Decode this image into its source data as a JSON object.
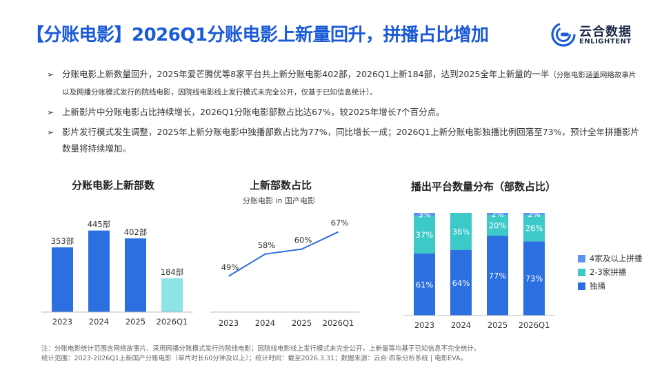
{
  "header": {
    "title": "【分账电影】2026Q1分账电影上新量回升，拼播占比增加",
    "logo_cn": "云合数据",
    "logo_en": "ENLIGHTENT"
  },
  "bullets": [
    {
      "text": "分账电影上新数量回升，2025年爱芒腾优等8家平台共上新分账电影402部，2026Q1上新184部，达到2025全年上新量的一半",
      "small": "（分账电影涵盖网络故事片以及网播分账模式发行的院线电影，因院线电影线上发行模式未完全公开，仅基于已知信息统计）。"
    },
    {
      "text": "上新影片中分账电影占比持续增长，2026Q1分账电影部数占比达67%，较2025年增长7个百分点。",
      "small": ""
    },
    {
      "text": "影片发行模式发生调整，2025年上新分账电影中独播部数占比为77%，同比增长一成；2026Q1上新分账电影独播比例回落至73%，预计全年拼播影片数量将持续增加。",
      "small": ""
    }
  ],
  "chart_data": [
    {
      "type": "bar",
      "title": "分账电影上新部数",
      "categories": [
        "2023",
        "2024",
        "2025",
        "2026Q1"
      ],
      "values": [
        353,
        445,
        402,
        184
      ],
      "labels": [
        "353部",
        "445部",
        "402部",
        "184部"
      ],
      "colors": [
        "#2b6fe0",
        "#2b6fe0",
        "#2b6fe0",
        "#8ee3e4"
      ],
      "ylim": [
        0,
        500
      ]
    },
    {
      "type": "line",
      "title": "上新部数占比",
      "subtitle": "分账电影 in 国产电影",
      "categories": [
        "2023",
        "2024",
        "2025",
        "2026Q1"
      ],
      "values": [
        49,
        58,
        60,
        67
      ],
      "labels": [
        "49%",
        "58%",
        "60%",
        "67%"
      ],
      "color": "#2b6fe0",
      "ylim": [
        40,
        70
      ]
    },
    {
      "type": "bar",
      "stacked": true,
      "title": "播出平台数量分布（部数占比）",
      "categories": [
        "2023",
        "2024",
        "2025",
        "2026Q1"
      ],
      "series": [
        {
          "name": "独播",
          "values": [
            61,
            64,
            77,
            73
          ],
          "color": "#2b6fe0"
        },
        {
          "name": "2-3家拼播",
          "values": [
            37,
            36,
            20,
            26
          ],
          "color": "#3cc9c8"
        },
        {
          "name": "4家及以上拼播",
          "values": [
            3,
            0,
            2,
            2
          ],
          "color": "#5b93f0"
        }
      ],
      "legend": [
        "4家及以上拼播",
        "2-3家拼播",
        "独播"
      ],
      "legend_position": "right",
      "ylim": [
        0,
        100
      ]
    }
  ],
  "footnote": {
    "line1": "注：分账电影统计范围含网络故事片、采用网播分账模式发行的院线电影；因院线电影线上发行模式未完全公开，上新量等均基于已知信息不完全统计。",
    "line2": "统计范围：2023-2026Q1上新国产分账电影（单片时长60分钟及以上）；统计时间：截至2026.3.31；数据来源：云合·四象分析系统 | 电影EVA。"
  }
}
